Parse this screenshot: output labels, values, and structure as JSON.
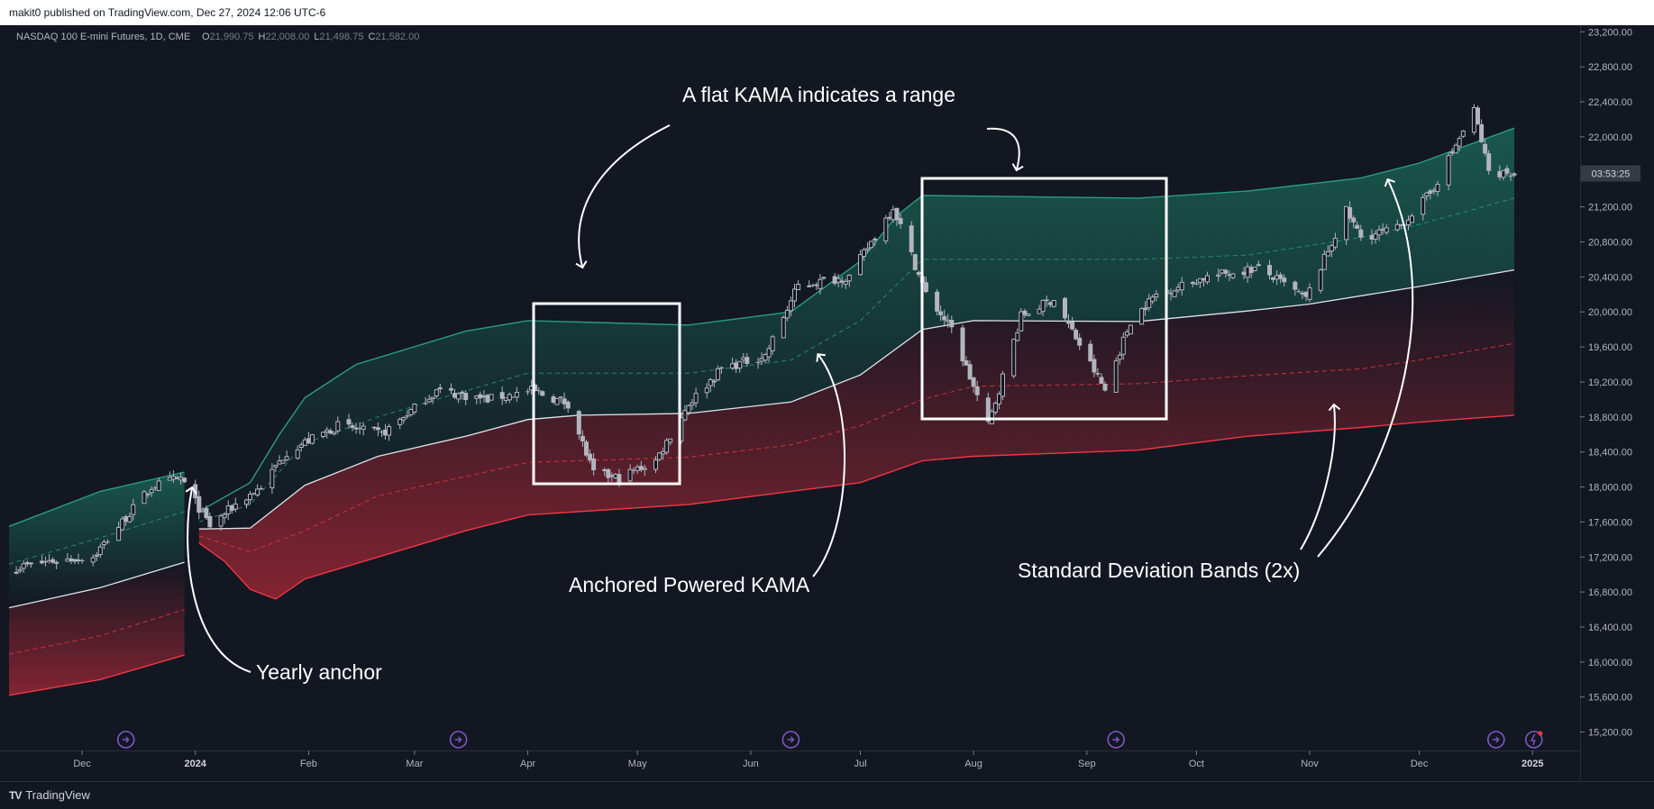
{
  "header": {
    "published": "makit0 published on TradingView.com, Dec 27, 2024 12:06 UTC-6"
  },
  "footer": {
    "brand": "TradingView",
    "logo": "TV"
  },
  "colors": {
    "background": "#131722",
    "candle": "#b2b5be",
    "upper_band": "#2a9d80",
    "lower_band": "#f23645",
    "kama": "#e0e3eb",
    "axis_text": "#b2b5be",
    "annotation": "#ffffff",
    "event_icon": "#7e57c2"
  },
  "chart_data": {
    "type": "candlestick",
    "title": "NASDAQ 100 E-mini Futures, 1D, CME",
    "ohlc": {
      "o_label": "O",
      "o": "21,990.75",
      "h_label": "H",
      "h": "22,008.00",
      "l_label": "L",
      "l": "21,498.75",
      "c_label": "C",
      "c": "21,582.00"
    },
    "countdown": "03:53:25",
    "countdown_price": 21582,
    "ylim": [
      14850,
      23300
    ],
    "y_ticks": [
      {
        "value": 23200,
        "label": "23,200.00"
      },
      {
        "value": 22800,
        "label": "22,800.00"
      },
      {
        "value": 22400,
        "label": "22,400.00"
      },
      {
        "value": 22000,
        "label": "22,000.00"
      },
      {
        "value": 21200,
        "label": "21,200.00"
      },
      {
        "value": 20800,
        "label": "20,800.00"
      },
      {
        "value": 20400,
        "label": "20,400.00"
      },
      {
        "value": 20000,
        "label": "20,000.00"
      },
      {
        "value": 19600,
        "label": "19,600.00"
      },
      {
        "value": 19200,
        "label": "19,200.00"
      },
      {
        "value": 18800,
        "label": "18,800.00"
      },
      {
        "value": 18400,
        "label": "18,400.00"
      },
      {
        "value": 18000,
        "label": "18,000.00"
      },
      {
        "value": 17600,
        "label": "17,600.00"
      },
      {
        "value": 17200,
        "label": "17,200.00"
      },
      {
        "value": 16800,
        "label": "16,800.00"
      },
      {
        "value": 16400,
        "label": "16,400.00"
      },
      {
        "value": 16000,
        "label": "16,000.00"
      },
      {
        "value": 15600,
        "label": "15,600.00"
      },
      {
        "value": 15200,
        "label": "15,200.00"
      }
    ],
    "x_ticks": [
      {
        "date": "2023-12-01",
        "label": "Dec",
        "bold": false
      },
      {
        "date": "2024-01-01",
        "label": "2024",
        "bold": true
      },
      {
        "date": "2024-02-01",
        "label": "Feb",
        "bold": false
      },
      {
        "date": "2024-03-01",
        "label": "Mar",
        "bold": false
      },
      {
        "date": "2024-04-01",
        "label": "Apr",
        "bold": false
      },
      {
        "date": "2024-05-01",
        "label": "May",
        "bold": false
      },
      {
        "date": "2024-06-01",
        "label": "Jun",
        "bold": false
      },
      {
        "date": "2024-07-01",
        "label": "Jul",
        "bold": false
      },
      {
        "date": "2024-08-01",
        "label": "Aug",
        "bold": false
      },
      {
        "date": "2024-09-01",
        "label": "Sep",
        "bold": false
      },
      {
        "date": "2024-10-01",
        "label": "Oct",
        "bold": false
      },
      {
        "date": "2024-11-01",
        "label": "Nov",
        "bold": false
      },
      {
        "date": "2024-12-01",
        "label": "Dec",
        "bold": false
      },
      {
        "date": "2025-01-01",
        "label": "2025",
        "bold": true
      }
    ],
    "xlim": [
      "2023-11-11",
      "2025-01-14"
    ],
    "price_anchors": [
      [
        "2023-11-13",
        17080
      ],
      [
        "2023-11-24",
        17160
      ],
      [
        "2023-12-04",
        17200
      ],
      [
        "2023-12-12",
        17600
      ],
      [
        "2023-12-20",
        18000
      ],
      [
        "2023-12-28",
        18100
      ],
      [
        "2024-01-05",
        17550
      ],
      [
        "2024-01-12",
        17800
      ],
      [
        "2024-01-19",
        18000
      ],
      [
        "2024-01-26",
        18400
      ],
      [
        "2024-02-09",
        18700
      ],
      [
        "2024-02-21",
        18600
      ],
      [
        "2024-03-07",
        19100
      ],
      [
        "2024-03-21",
        19000
      ],
      [
        "2024-04-02",
        19100
      ],
      [
        "2024-04-12",
        18950
      ],
      [
        "2024-04-19",
        18150
      ],
      [
        "2024-04-26",
        18100
      ],
      [
        "2024-05-06",
        18300
      ],
      [
        "2024-05-15",
        18950
      ],
      [
        "2024-05-24",
        19350
      ],
      [
        "2024-06-05",
        19500
      ],
      [
        "2024-06-14",
        20300
      ],
      [
        "2024-06-28",
        20400
      ],
      [
        "2024-07-10",
        21200
      ],
      [
        "2024-07-19",
        20200
      ],
      [
        "2024-07-26",
        19800
      ],
      [
        "2024-08-05",
        18700
      ],
      [
        "2024-08-14",
        19950
      ],
      [
        "2024-08-23",
        20150
      ],
      [
        "2024-09-06",
        19100
      ],
      [
        "2024-09-13",
        19900
      ],
      [
        "2024-09-20",
        20200
      ],
      [
        "2024-10-04",
        20400
      ],
      [
        "2024-10-18",
        20500
      ],
      [
        "2024-10-31",
        20150
      ],
      [
        "2024-11-11",
        21150
      ],
      [
        "2024-11-15",
        20850
      ],
      [
        "2024-11-25",
        20950
      ],
      [
        "2024-12-04",
        21350
      ],
      [
        "2024-12-16",
        22300
      ],
      [
        "2024-12-20",
        21600
      ],
      [
        "2024-12-27",
        21582
      ]
    ],
    "kama": {
      "name": "Anchored Powered KAMA",
      "segment1": [
        [
          "2023-11-11",
          16620
        ],
        [
          "2023-12-06",
          16850
        ],
        [
          "2023-12-29",
          17140
        ]
      ],
      "segment2": [
        [
          "2024-01-02",
          17520
        ],
        [
          "2024-01-16",
          17530
        ],
        [
          "2024-01-31",
          18020
        ],
        [
          "2024-02-20",
          18350
        ],
        [
          "2024-03-15",
          18580
        ],
        [
          "2024-04-01",
          18770
        ],
        [
          "2024-04-15",
          18820
        ],
        [
          "2024-05-15",
          18840
        ],
        [
          "2024-06-12",
          18970
        ],
        [
          "2024-07-01",
          19280
        ],
        [
          "2024-07-18",
          19800
        ],
        [
          "2024-08-01",
          19900
        ],
        [
          "2024-09-15",
          19890
        ],
        [
          "2024-10-15",
          20010
        ],
        [
          "2024-11-01",
          20090
        ],
        [
          "2024-12-01",
          20290
        ],
        [
          "2024-12-27",
          20480
        ]
      ]
    },
    "upper_band": {
      "name": "Standard Deviation Bands (2x)",
      "segment1": [
        [
          "2023-11-11",
          17550
        ],
        [
          "2023-12-06",
          17950
        ],
        [
          "2023-12-29",
          18170
        ]
      ],
      "segment2": [
        [
          "2024-01-02",
          17720
        ],
        [
          "2024-01-16",
          18050
        ],
        [
          "2024-01-24",
          18600
        ],
        [
          "2024-01-31",
          19020
        ],
        [
          "2024-02-14",
          19400
        ],
        [
          "2024-03-15",
          19780
        ],
        [
          "2024-04-01",
          19900
        ],
        [
          "2024-05-15",
          19850
        ],
        [
          "2024-06-12",
          20000
        ],
        [
          "2024-07-01",
          20580
        ],
        [
          "2024-07-11",
          21100
        ],
        [
          "2024-07-18",
          21330
        ],
        [
          "2024-09-15",
          21300
        ],
        [
          "2024-10-15",
          21380
        ],
        [
          "2024-11-15",
          21530
        ],
        [
          "2024-12-01",
          21700
        ],
        [
          "2024-12-27",
          22100
        ]
      ]
    },
    "upper_mid": {
      "segment1": [
        [
          "2023-11-11",
          17120
        ],
        [
          "2023-12-06",
          17420
        ],
        [
          "2023-12-29",
          17720
        ]
      ],
      "segment2": [
        [
          "2024-01-02",
          17600
        ],
        [
          "2024-01-16",
          17800
        ],
        [
          "2024-01-31",
          18500
        ],
        [
          "2024-02-20",
          18800
        ],
        [
          "2024-03-15",
          19100
        ],
        [
          "2024-04-01",
          19300
        ],
        [
          "2024-05-15",
          19300
        ],
        [
          "2024-06-12",
          19450
        ],
        [
          "2024-07-01",
          19900
        ],
        [
          "2024-07-18",
          20600
        ],
        [
          "2024-09-15",
          20600
        ],
        [
          "2024-10-15",
          20650
        ],
        [
          "2024-11-15",
          20850
        ],
        [
          "2024-12-01",
          21000
        ],
        [
          "2024-12-27",
          21300
        ]
      ]
    },
    "lower_mid": {
      "segment1": [
        [
          "2023-11-11",
          16090
        ],
        [
          "2023-12-06",
          16300
        ],
        [
          "2023-12-29",
          16600
        ]
      ],
      "segment2": [
        [
          "2024-01-02",
          17440
        ],
        [
          "2024-01-16",
          17260
        ],
        [
          "2024-01-31",
          17500
        ],
        [
          "2024-02-20",
          17900
        ],
        [
          "2024-03-15",
          18120
        ],
        [
          "2024-04-01",
          18280
        ],
        [
          "2024-05-15",
          18340
        ],
        [
          "2024-06-12",
          18480
        ],
        [
          "2024-07-01",
          18700
        ],
        [
          "2024-07-18",
          19000
        ],
        [
          "2024-08-01",
          19150
        ],
        [
          "2024-09-15",
          19180
        ],
        [
          "2024-10-15",
          19270
        ],
        [
          "2024-11-15",
          19350
        ],
        [
          "2024-12-01",
          19450
        ],
        [
          "2024-12-27",
          19640
        ]
      ]
    },
    "lower_band": {
      "segment1": [
        [
          "2023-11-11",
          15620
        ],
        [
          "2023-12-06",
          15800
        ],
        [
          "2023-12-29",
          16080
        ]
      ],
      "segment2": [
        [
          "2024-01-02",
          17360
        ],
        [
          "2024-01-09",
          17150
        ],
        [
          "2024-01-16",
          16830
        ],
        [
          "2024-01-23",
          16720
        ],
        [
          "2024-01-31",
          16950
        ],
        [
          "2024-02-20",
          17200
        ],
        [
          "2024-03-15",
          17500
        ],
        [
          "2024-04-01",
          17680
        ],
        [
          "2024-05-15",
          17800
        ],
        [
          "2024-06-12",
          17950
        ],
        [
          "2024-07-01",
          18050
        ],
        [
          "2024-07-18",
          18300
        ],
        [
          "2024-08-01",
          18350
        ],
        [
          "2024-09-15",
          18420
        ],
        [
          "2024-10-15",
          18580
        ],
        [
          "2024-11-15",
          18680
        ],
        [
          "2024-12-01",
          18740
        ],
        [
          "2024-12-27",
          18820
        ]
      ]
    },
    "event_icons": [
      "2023-12-13",
      "2024-03-13",
      "2024-06-12",
      "2024-09-09",
      "2024-12-22"
    ],
    "annotations": {
      "flat_kama": "A flat KAMA indicates a range",
      "anchored_kama": "Anchored Powered KAMA",
      "std_bands": "Standard Deviation Bands (2x)",
      "yearly_anchor": "Yearly anchor"
    }
  }
}
